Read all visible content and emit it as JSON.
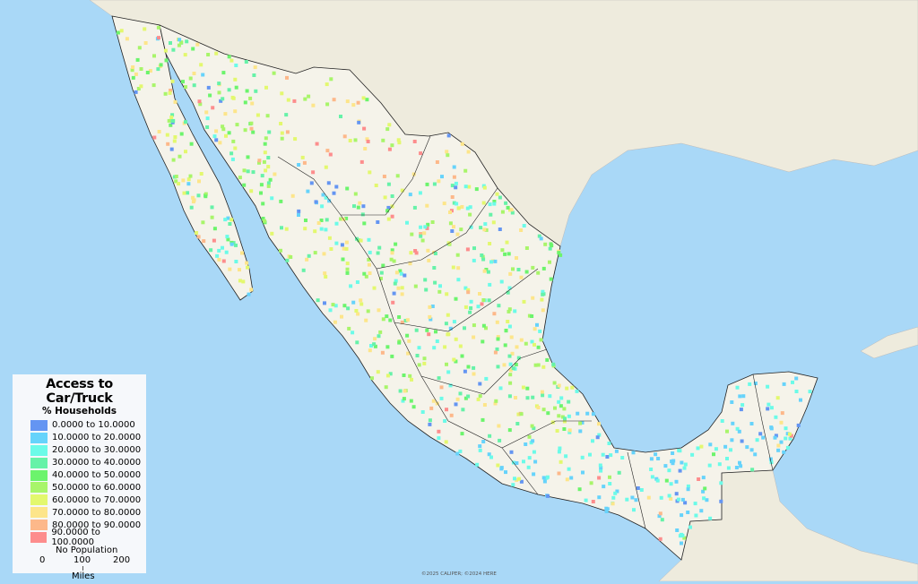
{
  "legend": {
    "title": "Access to Car/Truck",
    "subtitle": "% Households",
    "classes": [
      {
        "label": "0.0000 to 10.0000",
        "color": "#6495f2"
      },
      {
        "label": "10.0000 to 20.0000",
        "color": "#66d3fb"
      },
      {
        "label": "20.0000 to 30.0000",
        "color": "#6bfbe8"
      },
      {
        "label": "30.0000 to 40.0000",
        "color": "#66f2a8"
      },
      {
        "label": "40.0000 to 50.0000",
        "color": "#6cf46c"
      },
      {
        "label": "50.0000 to 60.0000",
        "color": "#a8f56a"
      },
      {
        "label": "60.0000 to 70.0000",
        "color": "#e3f86e"
      },
      {
        "label": "70.0000 to 80.0000",
        "color": "#fde58a"
      },
      {
        "label": "80.0000 to 90.0000",
        "color": "#fdb88a"
      },
      {
        "label": "90.0000 to 100.0000",
        "color": "#fd8d8d"
      }
    ],
    "no_population": "No Population",
    "scale": {
      "ticks": [
        "0",
        "100",
        "200"
      ],
      "unit": "Miles"
    }
  },
  "colors": {
    "ocean": "#a9d8f7",
    "land": "#eeebdd",
    "mexico": "#f5f3ea",
    "border": "#222222"
  },
  "copyright": "©2025 CALIPER; ©2024 HERE"
}
